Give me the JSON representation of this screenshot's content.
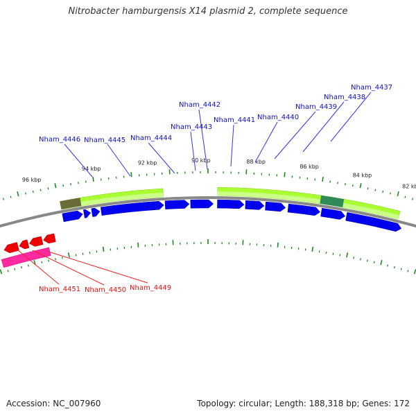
{
  "title": "Nitrobacter hamburgensis X14 plasmid 2, complete sequence",
  "footer": {
    "accession": "Accession: NC_007960",
    "summary": "Topology: circular; Length: 188,318 bp; Genes: 172"
  },
  "colors": {
    "forward_cds": "#0000ee",
    "reverse_cds": "#ee0000",
    "reverse_rna_band": "#ff2aa0",
    "feature_band": "#aaff33",
    "feature_band_dark": "#6b6b3a",
    "feature_band_dark_green": "#2e8b57",
    "backbone": "#888888",
    "tick": "#1a8a1a",
    "forward_label": "#1010c0",
    "reverse_label": "#dd1111"
  },
  "tick_labels": [
    "96 kbp",
    "94 kbp",
    "92 kbp",
    "90 kbp",
    "88 kbp",
    "86 kbp",
    "84 kbp",
    "82 kbp"
  ],
  "forward_genes": [
    "Nham_4446",
    "Nham_4445",
    "Nham_4444",
    "Nham_4443",
    "Nham_4442",
    "Nham_4441",
    "Nham_4440",
    "Nham_4439",
    "Nham_4438",
    "Nham_4437"
  ],
  "reverse_genes": [
    "Nham_4451",
    "Nham_4450",
    "Nham_4449"
  ]
}
